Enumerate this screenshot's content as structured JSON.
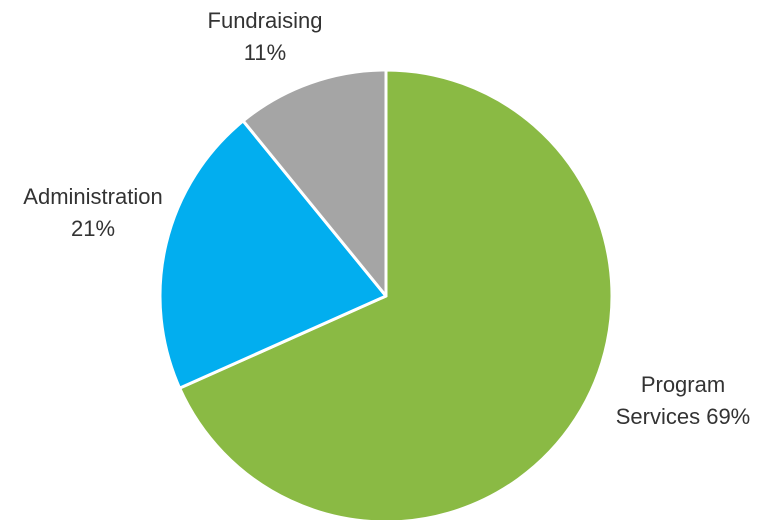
{
  "chart_data": {
    "type": "pie",
    "title": "",
    "slices": [
      {
        "label_lines": [
          "Program",
          "Services 69%"
        ],
        "value": 69,
        "color": "#8aba44"
      },
      {
        "label_lines": [
          "Administration",
          "21%"
        ],
        "value": 21,
        "color": "#02aeef"
      },
      {
        "label_lines": [
          "Fundraising",
          "11%"
        ],
        "value": 11,
        "color": "#a5a5a5"
      }
    ],
    "start_angle_deg": 0,
    "direction": "clockwise",
    "legend": "none"
  }
}
